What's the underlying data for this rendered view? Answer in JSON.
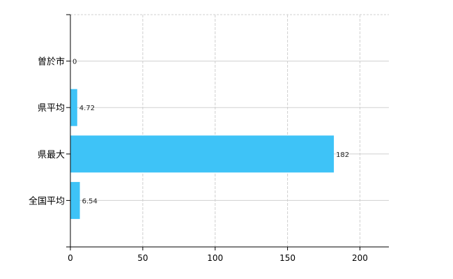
{
  "chart_data": {
    "type": "bar",
    "orientation": "horizontal",
    "categories": [
      "曽於市",
      "県平均",
      "県最大",
      "全国平均"
    ],
    "values": [
      0,
      4.72,
      182,
      6.54
    ],
    "value_labels": [
      "0",
      "4.72",
      "182",
      "6.54"
    ],
    "title": "",
    "xlabel": "",
    "ylabel": "",
    "xlim": [
      0,
      220
    ],
    "xticks": [
      0,
      50,
      100,
      150,
      200
    ],
    "grid": true,
    "bar_color": "#3ec3f7",
    "grid_color": "#d0d0d0"
  }
}
